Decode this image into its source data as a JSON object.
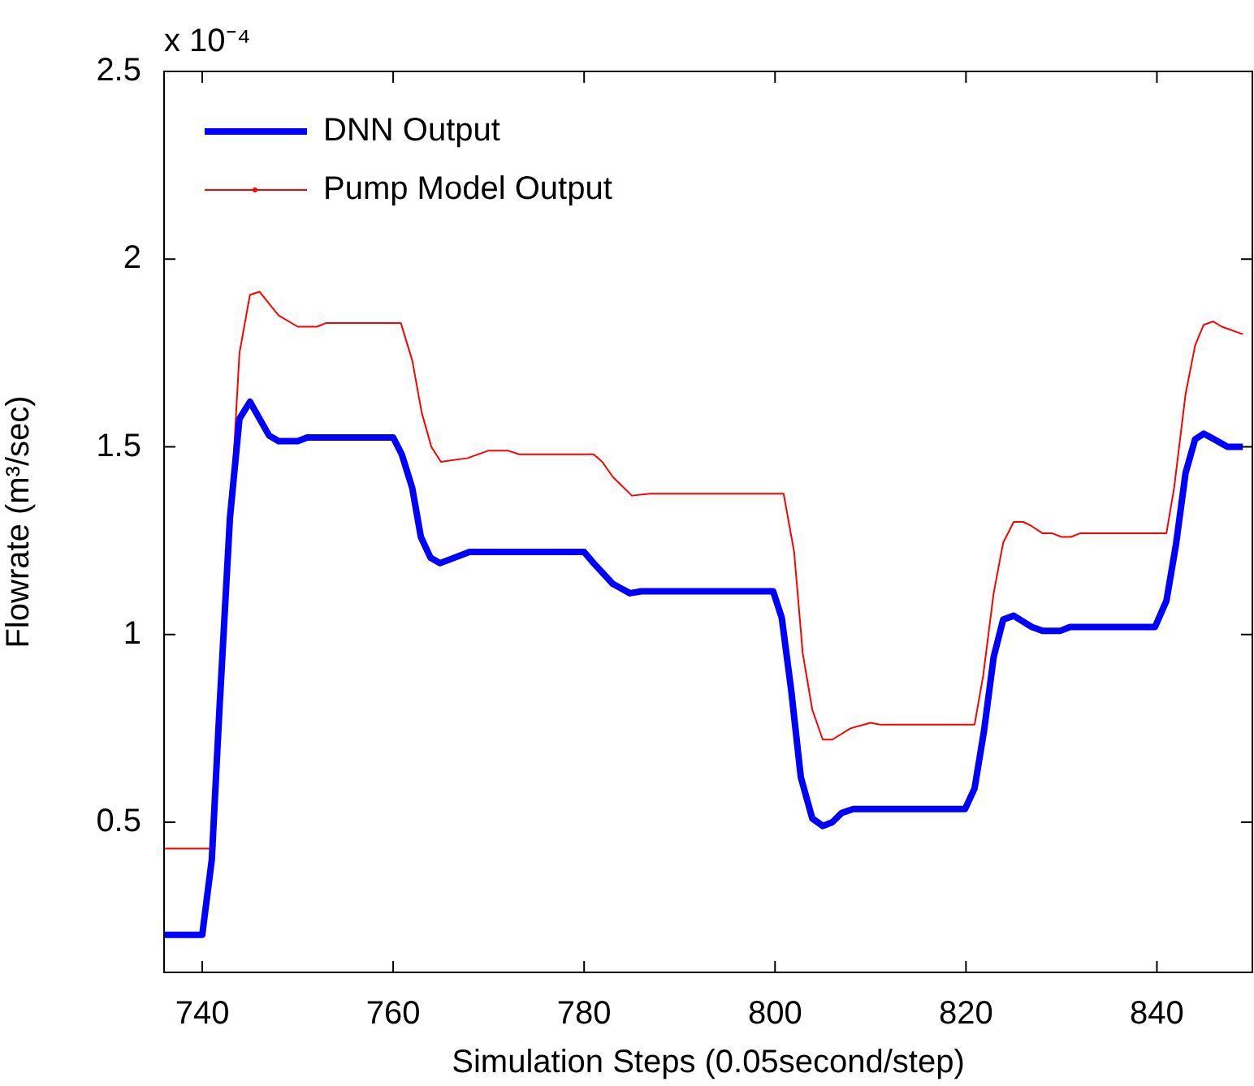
{
  "chart_data": {
    "type": "line",
    "xlabel": "Simulation Steps (0.05second/step)",
    "ylabel": "Flowrate (m³/sec)",
    "annotations": [
      "x 10⁻⁴"
    ],
    "xlim": [
      736,
      850
    ],
    "ylim": [
      0.1,
      2.5
    ],
    "xticks": [
      740,
      760,
      780,
      800,
      820,
      840
    ],
    "yticks": [
      0.5,
      1,
      1.5,
      2,
      2.5
    ],
    "grid": false,
    "legend": "top left",
    "line_style": "solid",
    "marker": "none",
    "series": [
      {
        "name": "DNN Output",
        "color": "#0000ff",
        "x": [
          736,
          740,
          741,
          741.8,
          742.9,
          743.9,
          745,
          747,
          748,
          750,
          751,
          760,
          760.9,
          762,
          762.9,
          763.9,
          764.9,
          768,
          780,
          781,
          783,
          784.8,
          786,
          799.8,
          800.7,
          801.7,
          802.7,
          803.9,
          805,
          806,
          807,
          808.2,
          819.9,
          820.9,
          821.9,
          822.9,
          823.9,
          825,
          826.9,
          828,
          829.9,
          830.9,
          839.8,
          841,
          842,
          843,
          844,
          844.9,
          846,
          847.4,
          849
        ],
        "values": [
          0.2,
          0.2,
          0.4,
          0.8,
          1.31,
          1.575,
          1.62,
          1.53,
          1.515,
          1.515,
          1.525,
          1.525,
          1.48,
          1.39,
          1.26,
          1.205,
          1.19,
          1.22,
          1.22,
          1.19,
          1.135,
          1.11,
          1.115,
          1.115,
          1.045,
          0.85,
          0.62,
          0.51,
          0.49,
          0.5,
          0.525,
          0.535,
          0.535,
          0.59,
          0.745,
          0.94,
          1.04,
          1.05,
          1.02,
          1.01,
          1.01,
          1.02,
          1.02,
          1.09,
          1.24,
          1.43,
          1.52,
          1.535,
          1.52,
          1.5,
          1.5
        ]
      },
      {
        "name": "Pump Model Output",
        "color": "#ff0000",
        "x": [
          736,
          741,
          743.9,
          745,
          746,
          748,
          750,
          752,
          753,
          760.8,
          762,
          763,
          764,
          765,
          767.8,
          770,
          772,
          773.2,
          781,
          781.9,
          783,
          785,
          786.9,
          800.9,
          802,
          802.9,
          803.9,
          805,
          806,
          807.9,
          810,
          811,
          820.9,
          821.8,
          822.9,
          823.9,
          825,
          826,
          826.8,
          828,
          829,
          830,
          831,
          832,
          841,
          841.8,
          843,
          844,
          844.9,
          845.9,
          846.8,
          849
        ],
        "values": [
          0.43,
          0.43,
          1.75,
          1.905,
          1.913,
          1.85,
          1.82,
          1.82,
          1.83,
          1.83,
          1.73,
          1.59,
          1.5,
          1.46,
          1.47,
          1.49,
          1.49,
          1.48,
          1.48,
          1.46,
          1.42,
          1.37,
          1.375,
          1.375,
          1.22,
          0.95,
          0.8,
          0.72,
          0.72,
          0.75,
          0.765,
          0.76,
          0.76,
          0.89,
          1.11,
          1.245,
          1.3,
          1.3,
          1.29,
          1.27,
          1.27,
          1.26,
          1.26,
          1.27,
          1.27,
          1.39,
          1.64,
          1.77,
          1.825,
          1.834,
          1.82,
          1.8
        ]
      }
    ]
  }
}
